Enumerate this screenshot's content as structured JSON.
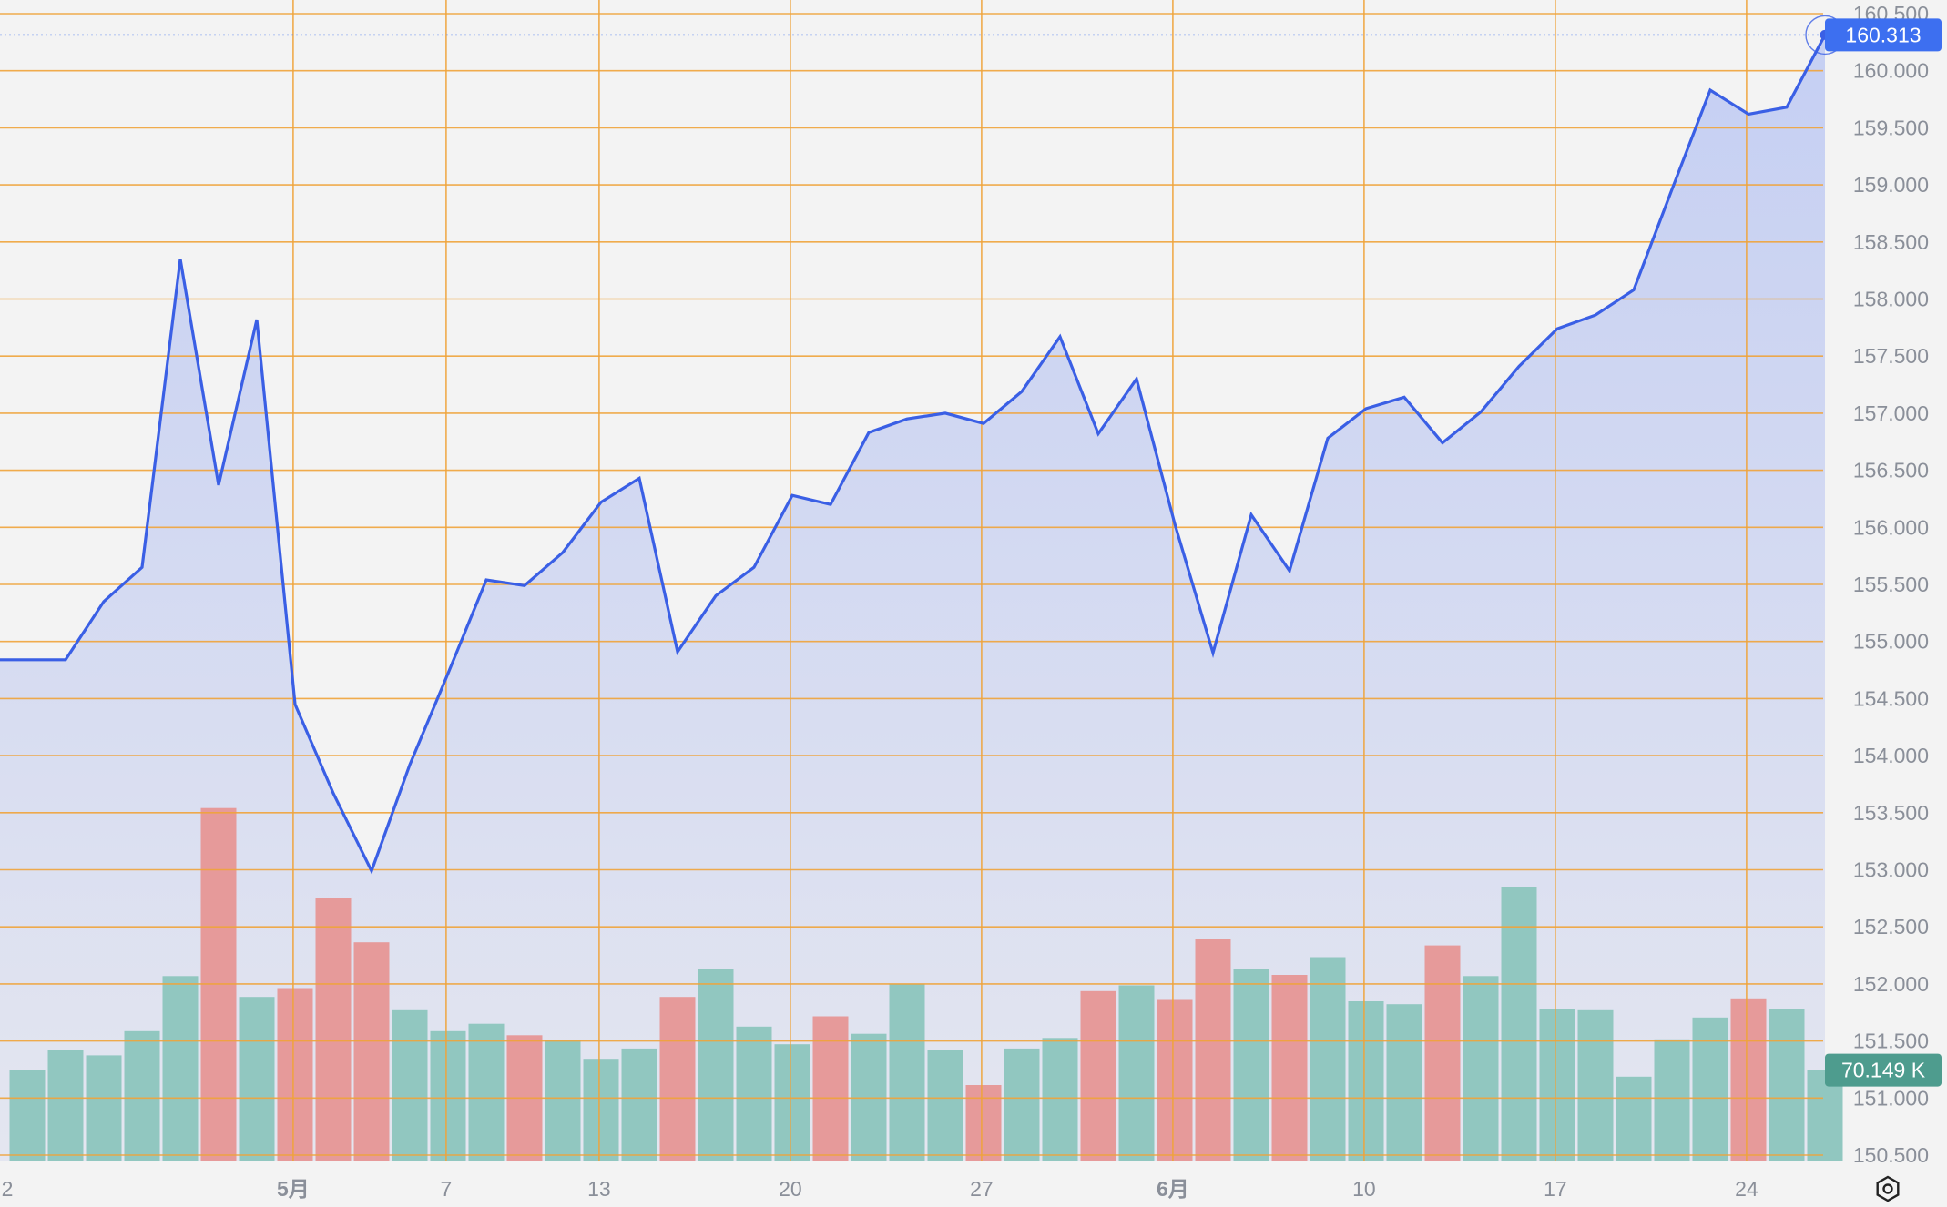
{
  "chart_data": {
    "type": "area",
    "y_axis_side": "right",
    "ylim": [
      150.5,
      160.5
    ],
    "y_ticks": [
      "150.500",
      "151.000",
      "151.500",
      "152.000",
      "152.500",
      "153.000",
      "153.500",
      "154.000",
      "154.500",
      "155.000",
      "155.500",
      "156.000",
      "156.500",
      "157.000",
      "157.500",
      "158.000",
      "158.500",
      "159.000",
      "159.500",
      "160.000",
      "160.500"
    ],
    "x_ticks": [
      {
        "label": "2",
        "index": -0.12,
        "bold": false
      },
      {
        "label": "5月",
        "index": 6.95,
        "bold": true
      },
      {
        "label": "7",
        "index": 10.95,
        "bold": false
      },
      {
        "label": "13",
        "index": 14.95,
        "bold": false
      },
      {
        "label": "20",
        "index": 19.95,
        "bold": false
      },
      {
        "label": "27",
        "index": 24.95,
        "bold": false
      },
      {
        "label": "6月",
        "index": 29.95,
        "bold": true
      },
      {
        "label": "10",
        "index": 34.95,
        "bold": false
      },
      {
        "label": "17",
        "index": 39.95,
        "bold": false
      },
      {
        "label": "24",
        "index": 44.95,
        "bold": false
      }
    ],
    "price": [
      154.84,
      154.84,
      155.35,
      155.65,
      158.35,
      156.37,
      157.82,
      154.45,
      153.67,
      152.99,
      153.92,
      154.72,
      155.54,
      155.49,
      155.78,
      156.22,
      156.43,
      154.91,
      155.4,
      155.65,
      156.28,
      156.2,
      156.83,
      156.95,
      157.0,
      156.91,
      157.19,
      157.67,
      156.82,
      157.3,
      156.03,
      154.9,
      156.11,
      155.62,
      156.78,
      157.04,
      157.14,
      156.74,
      157.01,
      157.41,
      157.74,
      157.86,
      158.08,
      158.96,
      159.83,
      159.62,
      159.68,
      160.313
    ],
    "volume": [
      70.0,
      86.1,
      81.6,
      100.4,
      143.1,
      273.4,
      126.9,
      133.8,
      203.4,
      169.3,
      116.6,
      100.4,
      106.1,
      97.2,
      93.8,
      78.9,
      86.9,
      126.9,
      148.6,
      103.9,
      90.2,
      111.9,
      98.3,
      137.1,
      86.1,
      58.6,
      86.9,
      95.1,
      131.4,
      135.9,
      124.6,
      171.5,
      148.6,
      144.0,
      157.8,
      123.5,
      121.3,
      166.9,
      143.1,
      212.5,
      117.7,
      116.6,
      65.1,
      94.0,
      111.0,
      125.8,
      117.7,
      70.149
    ],
    "volume_direction": [
      "up",
      "up",
      "up",
      "up",
      "up",
      "down",
      "up",
      "down",
      "down",
      "down",
      "up",
      "up",
      "up",
      "down",
      "up",
      "up",
      "up",
      "down",
      "up",
      "up",
      "up",
      "down",
      "up",
      "up",
      "up",
      "down",
      "up",
      "up",
      "down",
      "up",
      "down",
      "down",
      "up",
      "down",
      "up",
      "up",
      "up",
      "down",
      "up",
      "up",
      "up",
      "up",
      "up",
      "up",
      "up",
      "down",
      "up",
      "up"
    ],
    "volume_max_k": 300,
    "last_price_label": "160.313",
    "last_volume_label": "70.149 K",
    "grid": true,
    "colors": {
      "line": "#3a5fe5",
      "area_top": "#c5cff3",
      "area_bottom": "#e4e6f0",
      "grid": "#f0a33a",
      "volume_up": "#91c7c0",
      "volume_down": "#e69a9a",
      "price_badge": "#3d6ff0",
      "volume_badge": "#4e9c8e",
      "axis_text": "#8a8f99",
      "dotted_line": "#3d6ff0"
    }
  },
  "ui": {
    "settings_icon": "gear-hexagon-icon"
  }
}
